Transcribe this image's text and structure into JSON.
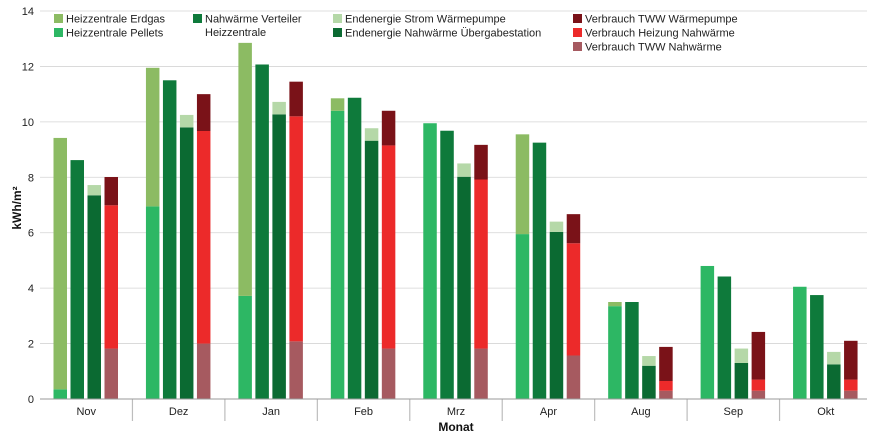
{
  "chart_data": {
    "type": "bar",
    "title": "",
    "xlabel": "Monat",
    "ylabel": "kWh/m²",
    "ylim": [
      0,
      14
    ],
    "yticks": [
      0,
      2,
      4,
      6,
      8,
      10,
      12,
      14
    ],
    "grid": true,
    "legend_position": "top",
    "categories": [
      "Nov",
      "Dez",
      "Jan",
      "Feb",
      "Mrz",
      "Apr",
      "Aug",
      "Sep",
      "Okt"
    ],
    "stacks": [
      {
        "key": "erzeugung",
        "segments": [
          {
            "name": "Heizzentrale Pellets",
            "color": "#2db764",
            "values": [
              0.35,
              6.95,
              3.72,
              10.4,
              9.95,
              5.95,
              3.35,
              4.8,
              4.05
            ]
          },
          {
            "name": "Heizzentrale Erdgas",
            "color": "#8cbb63",
            "values": [
              9.07,
              5.0,
              9.13,
              0.45,
              0.0,
              3.6,
              0.15,
              0.0,
              0.0
            ]
          }
        ]
      },
      {
        "key": "verteiler",
        "segments": [
          {
            "name": "Nahwärme Verteiler Heizzentrale",
            "color": "#0e7a3b",
            "values": [
              8.62,
              11.5,
              12.07,
              10.87,
              9.68,
              9.25,
              3.5,
              4.42,
              3.75
            ]
          }
        ]
      },
      {
        "key": "endenergie",
        "segments": [
          {
            "name": "Endenergie Nahwärme Übergabestation",
            "color": "#0b6a32",
            "values": [
              7.35,
              9.8,
              10.27,
              9.32,
              8.02,
              6.03,
              1.2,
              1.3,
              1.25
            ]
          },
          {
            "name": "Endenergie Strom Wärmepumpe",
            "color": "#b5d8a8",
            "values": [
              0.37,
              0.45,
              0.45,
              0.45,
              0.48,
              0.37,
              0.35,
              0.52,
              0.45
            ]
          }
        ]
      },
      {
        "key": "verbrauch",
        "segments": [
          {
            "name": "Verbrauch TWW Nahwärme",
            "color": "#a65a60",
            "values": [
              1.82,
              2.0,
              2.08,
              1.82,
              1.82,
              1.57,
              0.3,
              0.3,
              0.3
            ]
          },
          {
            "name": "Verbrauch Heizung Nahwärme",
            "color": "#ec2a2a",
            "values": [
              5.17,
              7.67,
              8.12,
              7.33,
              6.1,
              4.05,
              0.35,
              0.4,
              0.4
            ]
          },
          {
            "name": "Verbrauch TWW Wärmepumpe",
            "color": "#7a1218",
            "values": [
              1.02,
              1.33,
              1.25,
              1.25,
              1.25,
              1.05,
              1.23,
              1.72,
              1.4
            ]
          }
        ]
      }
    ],
    "legend": [
      {
        "label": "Heizzentrale Erdgas",
        "color": "#8cbb63"
      },
      {
        "label": "Heizzentrale Pellets",
        "color": "#2db764"
      },
      {
        "label": "Nahwärme Verteiler",
        "label2": "Heizzentrale",
        "color": "#0e7a3b"
      },
      {
        "label": "Endenergie Strom Wärmepumpe",
        "color": "#b5d8a8"
      },
      {
        "label": "Endenergie Nahwärme Übergabestation",
        "color": "#0b6a32"
      },
      {
        "label": "Verbrauch TWW Wärmepumpe",
        "color": "#7a1218"
      },
      {
        "label": "Verbrauch Heizung Nahwärme",
        "color": "#ec2a2a"
      },
      {
        "label": "Verbrauch TWW Nahwärme",
        "color": "#a65a60"
      }
    ]
  }
}
